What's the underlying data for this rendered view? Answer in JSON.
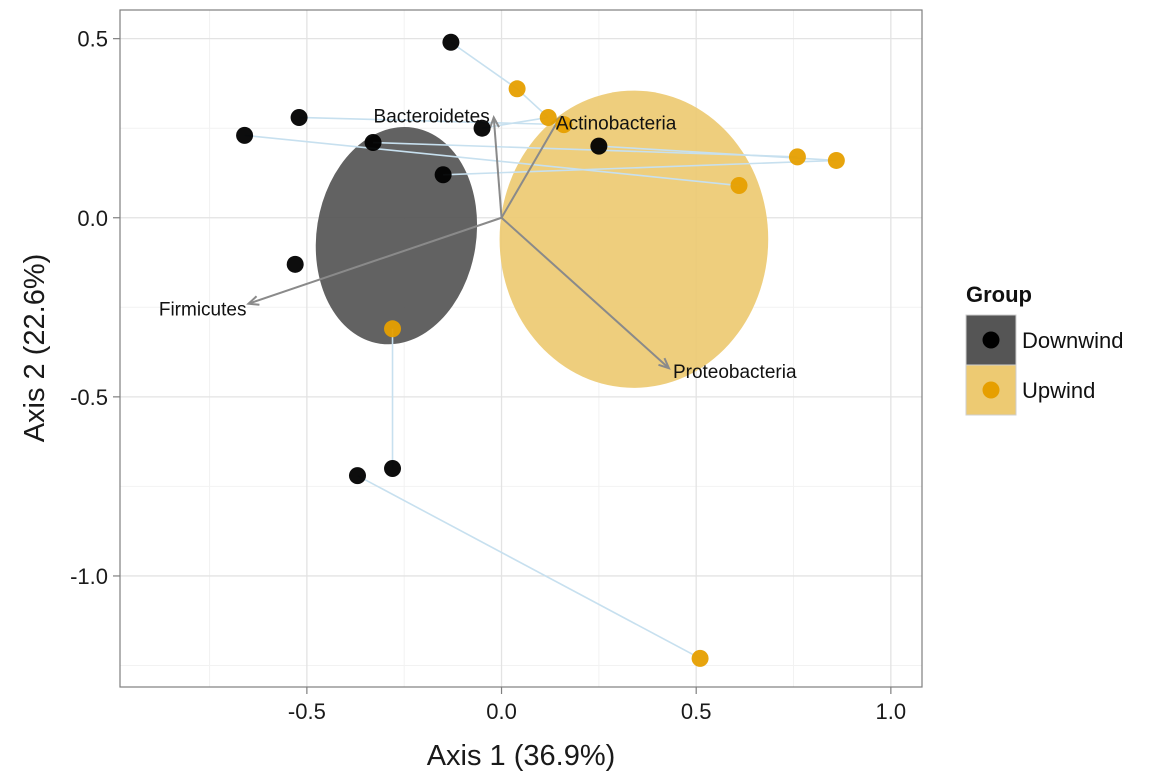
{
  "chart_data": {
    "type": "scatter",
    "xlabel": "Axis 1 (36.9%)",
    "ylabel": "Axis 2 (22.6%)",
    "xlim": [
      -0.98,
      1.08
    ],
    "ylim": [
      -1.31,
      0.58
    ],
    "x_ticks": [
      -0.5,
      0.0,
      0.5,
      1.0
    ],
    "x_tick_labels": [
      "-0.5",
      "0.0",
      "0.5",
      "1.0"
    ],
    "y_ticks": [
      -1.0,
      -0.5,
      0.0,
      0.5
    ],
    "y_tick_labels": [
      "-1.0",
      "-0.5",
      "0.0",
      "0.5"
    ],
    "grid": true,
    "legend": {
      "title": "Group",
      "position": "right",
      "entries": [
        {
          "name": "Downwind",
          "point_color": "#000000",
          "fill_color": "#555555"
        },
        {
          "name": "Upwind",
          "point_color": "#E69F00",
          "fill_color": "#EDCA72"
        }
      ]
    },
    "series": [
      {
        "name": "Downwind",
        "color": "#000000",
        "points": [
          {
            "x": -0.13,
            "y": 0.49
          },
          {
            "x": -0.52,
            "y": 0.28
          },
          {
            "x": -0.66,
            "y": 0.23
          },
          {
            "x": -0.33,
            "y": 0.21
          },
          {
            "x": -0.05,
            "y": 0.25
          },
          {
            "x": -0.15,
            "y": 0.12
          },
          {
            "x": 0.25,
            "y": 0.2
          },
          {
            "x": -0.53,
            "y": -0.13
          },
          {
            "x": -0.28,
            "y": -0.7
          },
          {
            "x": -0.37,
            "y": -0.72
          }
        ]
      },
      {
        "name": "Upwind",
        "color": "#E69F00",
        "points": [
          {
            "x": 0.04,
            "y": 0.36
          },
          {
            "x": 0.12,
            "y": 0.28
          },
          {
            "x": 0.16,
            "y": 0.26
          },
          {
            "x": 0.76,
            "y": 0.17
          },
          {
            "x": 0.86,
            "y": 0.16
          },
          {
            "x": 0.61,
            "y": 0.09
          },
          {
            "x": -0.28,
            "y": -0.31
          },
          {
            "x": 0.51,
            "y": -1.23
          }
        ]
      }
    ],
    "ellipses": [
      {
        "group": "Downwind",
        "cx": -0.27,
        "cy": -0.05,
        "rx": 0.205,
        "ry": 0.305,
        "angle_deg": 9,
        "color": "#555555"
      },
      {
        "group": "Upwind",
        "cx": 0.34,
        "cy": -0.06,
        "rx": 0.345,
        "ry": 0.415,
        "angle_deg": 0,
        "color": "#EDCA72"
      }
    ],
    "pairings": [
      [
        [
          -0.13,
          0.49
        ],
        [
          0.04,
          0.36
        ]
      ],
      [
        [
          0.04,
          0.36
        ],
        [
          0.12,
          0.28
        ]
      ],
      [
        [
          -0.52,
          0.28
        ],
        [
          0.16,
          0.26
        ]
      ],
      [
        [
          -0.66,
          0.23
        ],
        [
          0.61,
          0.09
        ]
      ],
      [
        [
          -0.33,
          0.21
        ],
        [
          0.76,
          0.17
        ]
      ],
      [
        [
          -0.15,
          0.12
        ],
        [
          0.86,
          0.16
        ]
      ],
      [
        [
          0.25,
          0.2
        ],
        [
          0.86,
          0.16
        ]
      ],
      [
        [
          -0.05,
          0.25
        ],
        [
          0.12,
          0.28
        ]
      ],
      [
        [
          -0.28,
          -0.7
        ],
        [
          -0.28,
          -0.31
        ]
      ],
      [
        [
          -0.37,
          -0.72
        ],
        [
          0.51,
          -1.23
        ]
      ]
    ],
    "vectors": [
      {
        "name": "Firmicutes",
        "x": -0.65,
        "y": -0.24
      },
      {
        "name": "Bacteroidetes",
        "x": -0.02,
        "y": 0.28
      },
      {
        "name": "Actinobacteria",
        "x": 0.15,
        "y": 0.28
      },
      {
        "name": "Proteobacteria",
        "x": 0.43,
        "y": -0.42
      }
    ]
  }
}
